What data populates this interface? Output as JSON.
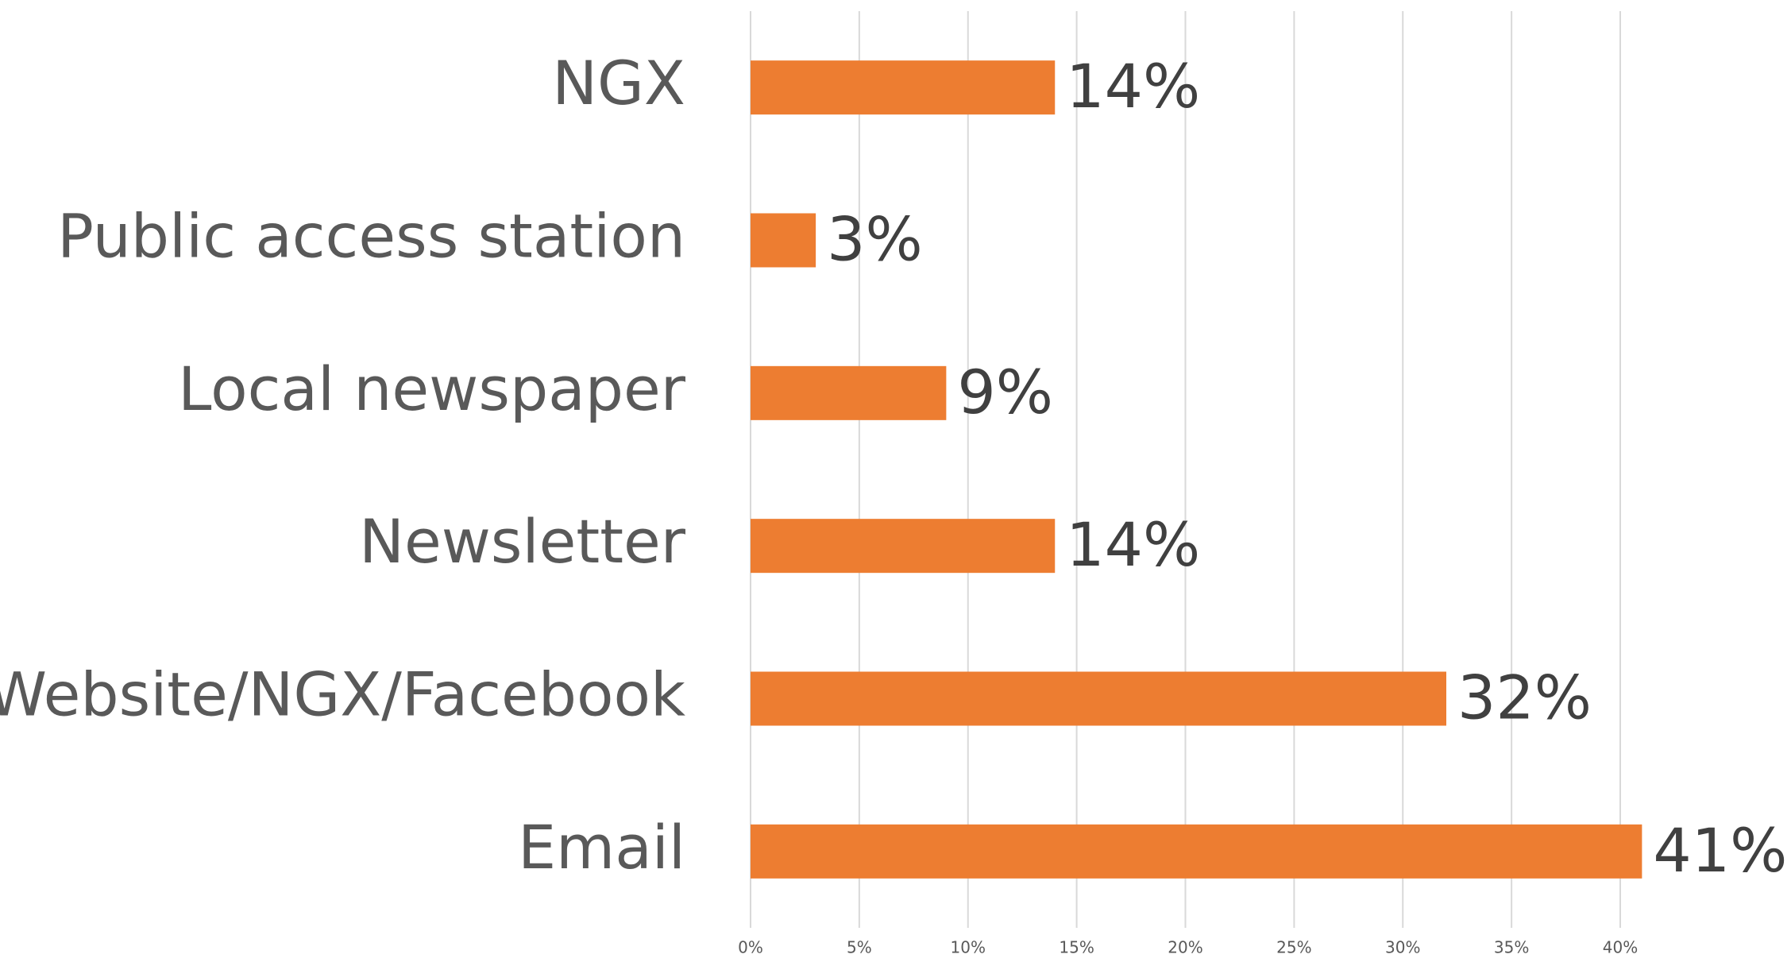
{
  "chart_data": {
    "type": "bar",
    "orientation": "horizontal",
    "categories": [
      "NGX",
      "Public access station",
      "Local newspaper",
      "Newsletter",
      "Website/NGX/Facebook",
      "Email"
    ],
    "values": [
      14,
      3,
      9,
      14,
      32,
      41
    ],
    "value_labels": [
      "14%",
      "3%",
      "9%",
      "14%",
      "32%",
      "41%"
    ],
    "color": "#ed7d31",
    "xlim": [
      0,
      40
    ],
    "xticks": [
      {
        "value": 0,
        "label": "0%"
      },
      {
        "value": 5,
        "label": "5%"
      },
      {
        "value": 10,
        "label": "10%"
      },
      {
        "value": 15,
        "label": "15%"
      },
      {
        "value": 20,
        "label": "20%"
      },
      {
        "value": 25,
        "label": "25%"
      },
      {
        "value": 30,
        "label": "30%"
      },
      {
        "value": 35,
        "label": "35%"
      },
      {
        "value": 40,
        "label": "40%"
      }
    ],
    "grid": true
  }
}
